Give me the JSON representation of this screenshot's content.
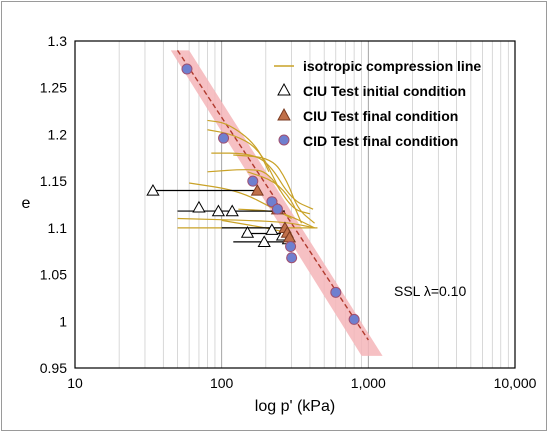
{
  "chart_data": {
    "type": "scatter",
    "title": "",
    "xlabel": "log p' (kPa)",
    "ylabel": "e",
    "xscale": "log",
    "xlim": [
      10,
      10000
    ],
    "ylim": [
      0.95,
      1.3
    ],
    "x_ticks": [
      10,
      100,
      1000,
      10000
    ],
    "x_tick_labels": [
      "10",
      "100",
      "1,000",
      "10,000"
    ],
    "y_ticks": [
      0.95,
      1.0,
      1.05,
      1.1,
      1.15,
      1.2,
      1.25,
      1.3
    ],
    "y_tick_labels": [
      "0.95",
      "1",
      "1.05",
      "1.1",
      "1.15",
      "1.2",
      "1.25",
      "1.3"
    ],
    "grid": "vertical minor log grid",
    "legend_position": "top-right",
    "colors": {
      "icl": "#c9a227",
      "ssl_band": "#f4b5b8",
      "ssl_line": "#b03a2e",
      "ciu_final": "#c0704a",
      "cid_final": "#6f7fcf",
      "cid_edge": "#a05070",
      "ciu_path": "#000000"
    },
    "legend": [
      {
        "key": "icl",
        "label": "isotropic compression line",
        "marker": "line"
      },
      {
        "key": "ciu_initial",
        "label": "CIU Test initial condition",
        "marker": "open-triangle"
      },
      {
        "key": "ciu_final",
        "label": "CIU Test final condition",
        "marker": "filled-triangle"
      },
      {
        "key": "cid_final",
        "label": "CID Test final condition",
        "marker": "circle"
      }
    ],
    "annotation": "SSL λ=0.10",
    "series": [
      {
        "key": "cid_final",
        "points": [
          [
            58,
            1.27
          ],
          [
            103,
            1.196
          ],
          [
            163,
            1.15
          ],
          [
            220,
            1.128
          ],
          [
            240,
            1.12
          ],
          [
            295,
            1.08
          ],
          [
            300,
            1.068
          ],
          [
            600,
            1.031
          ],
          [
            800,
            1.002
          ]
        ]
      },
      {
        "key": "ciu_initial",
        "points": [
          [
            34,
            1.14
          ],
          [
            70,
            1.122
          ],
          [
            95,
            1.118
          ],
          [
            118,
            1.118
          ],
          [
            150,
            1.095
          ],
          [
            195,
            1.085
          ],
          [
            220,
            1.098
          ],
          [
            260,
            1.092
          ],
          [
            285,
            1.088
          ]
        ]
      },
      {
        "key": "ciu_final",
        "points": [
          [
            175,
            1.14
          ],
          [
            240,
            1.12
          ],
          [
            270,
            1.1
          ],
          [
            280,
            1.095
          ],
          [
            290,
            1.09
          ]
        ]
      },
      {
        "key": "ciu_paths",
        "segments": [
          [
            [
              34,
              1.14
            ],
            [
              175,
              1.14
            ]
          ],
          [
            [
              50,
              1.118
            ],
            [
              240,
              1.118
            ]
          ],
          [
            [
              110,
              1.118
            ],
            [
              270,
              1.118
            ]
          ],
          [
            [
              100,
              1.1
            ],
            [
              280,
              1.1
            ]
          ],
          [
            [
              140,
              1.094
            ],
            [
              285,
              1.094
            ]
          ],
          [
            [
              120,
              1.085
            ],
            [
              290,
              1.085
            ]
          ]
        ]
      },
      {
        "key": "icl",
        "curves": [
          [
            [
              80,
              1.16
            ],
            [
              150,
              1.163
            ],
            [
              210,
              1.16
            ],
            [
              300,
              1.12
            ],
            [
              400,
              1.115
            ]
          ],
          [
            [
              85,
              1.18
            ],
            [
              150,
              1.18
            ],
            [
              210,
              1.17
            ],
            [
              300,
              1.13
            ],
            [
              420,
              1.12
            ]
          ],
          [
            [
              120,
              1.178
            ],
            [
              220,
              1.175
            ],
            [
              280,
              1.15
            ],
            [
              330,
              1.12
            ],
            [
              430,
              1.105
            ]
          ],
          [
            [
              150,
              1.16
            ],
            [
              230,
              1.15
            ],
            [
              300,
              1.13
            ],
            [
              350,
              1.105
            ]
          ],
          [
            [
              60,
              1.148
            ],
            [
              130,
              1.14
            ],
            [
              230,
              1.12
            ],
            [
              300,
              1.11
            ]
          ],
          [
            [
              80,
              1.215
            ],
            [
              110,
              1.212
            ],
            [
              170,
              1.19
            ],
            [
              210,
              1.16
            ]
          ],
          [
            [
              80,
              1.205
            ],
            [
              120,
              1.2
            ],
            [
              180,
              1.185
            ],
            [
              250,
              1.14
            ]
          ],
          [
            [
              50,
              1.1
            ],
            [
              120,
              1.1
            ],
            [
              200,
              1.1
            ],
            [
              450,
              1.1
            ]
          ],
          [
            [
              50,
              1.11
            ],
            [
              150,
              1.108
            ],
            [
              280,
              1.106
            ],
            [
              430,
              1.1
            ]
          ],
          [
            [
              130,
              1.12
            ],
            [
              230,
              1.118
            ],
            [
              300,
              1.112
            ],
            [
              430,
              1.1
            ]
          ],
          [
            [
              100,
              1.108
            ],
            [
              200,
              1.1
            ],
            [
              300,
              1.094
            ]
          ]
        ]
      }
    ],
    "ssl": {
      "lambda": 0.1,
      "line": [
        [
          50,
          1.29
        ],
        [
          1000,
          0.98
        ]
      ],
      "band": [
        [
          45,
          1.29
        ],
        [
          60,
          1.29
        ],
        [
          1250,
          0.963
        ],
        [
          900,
          0.963
        ]
      ]
    }
  }
}
